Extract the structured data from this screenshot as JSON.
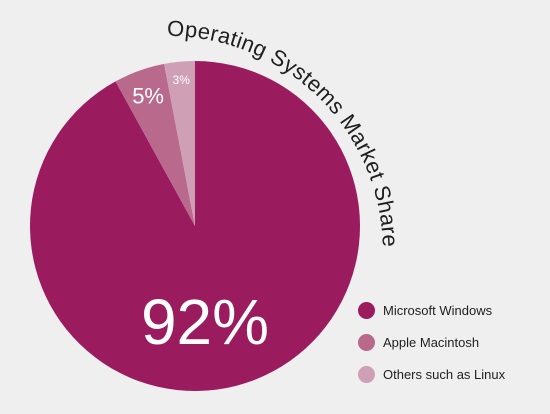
{
  "chart_data": {
    "type": "pie",
    "title": "Operating Systems Market Share",
    "slices": [
      {
        "label": "Microsoft Windows",
        "value": 92,
        "display": "92%",
        "color": "#9b1b5f"
      },
      {
        "label": "Apple Macintosh",
        "value": 5,
        "display": "5%",
        "color": "#b96a8c"
      },
      {
        "label": "Others such as Linux",
        "value": 3,
        "display": "3%",
        "color": "#cfa0b5"
      }
    ],
    "legend_position": "bottom-right",
    "background": "#efefef"
  }
}
